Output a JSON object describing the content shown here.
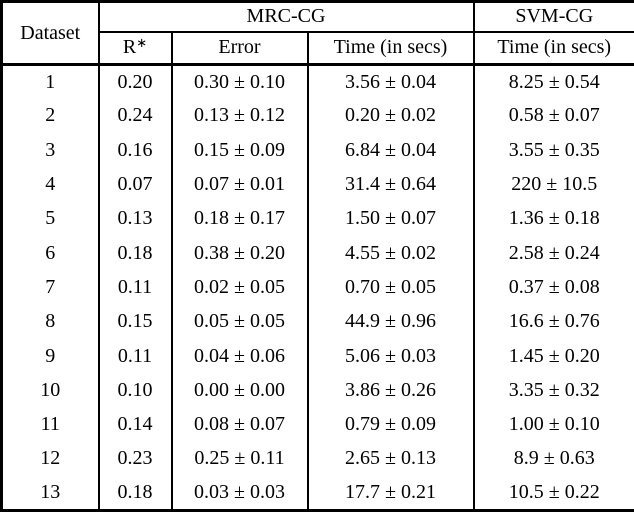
{
  "page": {
    "background": "#ffffff",
    "text_color": "#000000",
    "border_color": "#000000"
  },
  "chart_data": {
    "type": "table",
    "header": {
      "dataset": "Dataset",
      "mrc_group": "MRC-CG",
      "svm_group": "SVM-CG",
      "r_base": "R",
      "r_sup": "∗",
      "error": "Error",
      "time_mrc": "Time (in secs)",
      "time_svm": "Time (in secs)"
    },
    "rows": [
      {
        "dataset": "1",
        "r_star": "0.20",
        "error": "0.30 ± 0.10",
        "time_mrc": "3.56 ± 0.04",
        "time_svm": "8.25 ± 0.54"
      },
      {
        "dataset": "2",
        "r_star": "0.24",
        "error": "0.13 ± 0.12",
        "time_mrc": "0.20 ± 0.02",
        "time_svm": "0.58 ± 0.07"
      },
      {
        "dataset": "3",
        "r_star": "0.16",
        "error": "0.15 ± 0.09",
        "time_mrc": "6.84 ± 0.04",
        "time_svm": "3.55 ± 0.35"
      },
      {
        "dataset": "4",
        "r_star": "0.07",
        "error": "0.07 ± 0.01",
        "time_mrc": "31.4 ± 0.64",
        "time_svm": "220 ± 10.5"
      },
      {
        "dataset": "5",
        "r_star": "0.13",
        "error": "0.18 ± 0.17",
        "time_mrc": "1.50 ± 0.07",
        "time_svm": "1.36 ± 0.18"
      },
      {
        "dataset": "6",
        "r_star": "0.18",
        "error": "0.38 ± 0.20",
        "time_mrc": "4.55 ± 0.02",
        "time_svm": "2.58 ± 0.24"
      },
      {
        "dataset": "7",
        "r_star": "0.11",
        "error": "0.02 ± 0.05",
        "time_mrc": "0.70 ± 0.05",
        "time_svm": "0.37 ± 0.08"
      },
      {
        "dataset": "8",
        "r_star": "0.15",
        "error": "0.05 ± 0.05",
        "time_mrc": "44.9 ± 0.96",
        "time_svm": "16.6 ± 0.76"
      },
      {
        "dataset": "9",
        "r_star": "0.11",
        "error": "0.04 ± 0.06",
        "time_mrc": "5.06 ± 0.03",
        "time_svm": "1.45 ± 0.20"
      },
      {
        "dataset": "10",
        "r_star": "0.10",
        "error": "0.00 ± 0.00",
        "time_mrc": "3.86 ± 0.26",
        "time_svm": "3.35 ± 0.32"
      },
      {
        "dataset": "11",
        "r_star": "0.14",
        "error": "0.08 ± 0.07",
        "time_mrc": "0.79 ± 0.09",
        "time_svm": "1.00 ± 0.10"
      },
      {
        "dataset": "12",
        "r_star": "0.23",
        "error": "0.25 ± 0.11",
        "time_mrc": "2.65 ± 0.13",
        "time_svm": "8.9 ± 0.63"
      },
      {
        "dataset": "13",
        "r_star": "0.18",
        "error": "0.03 ± 0.03",
        "time_mrc": "17.7 ± 0.21",
        "time_svm": "10.5 ± 0.22"
      }
    ]
  }
}
